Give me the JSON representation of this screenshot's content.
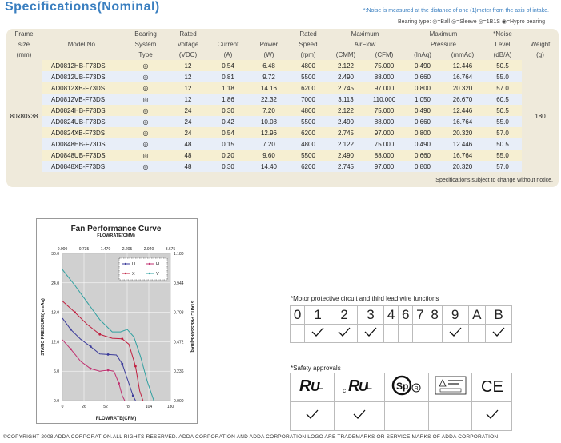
{
  "title": "Specifications(Nominal)",
  "note": "*:Noise is measured at the distance of one (1)meter from the axis of intake.",
  "bearing_type": "Bearing type: ◎=Ball ◎=Sleeve ◎=1B1S ◉=Hypro bearing",
  "headers": {
    "frame": [
      "Frame",
      "size",
      "(mm)"
    ],
    "model": "Model No.",
    "bearing": [
      "Bearing",
      "System",
      "Type"
    ],
    "voltage": [
      "Rated",
      "Voltage",
      "(VDC)"
    ],
    "current": [
      "Current",
      "(A)"
    ],
    "power": [
      "Power",
      "(W)"
    ],
    "speed": [
      "Rated",
      "Speed",
      "(rpm)"
    ],
    "airflow": [
      "Maximum",
      "AirFlow"
    ],
    "airflow_units": [
      "(CMM)",
      "(CFM)"
    ],
    "pressure": [
      "Maximum",
      "Pressure"
    ],
    "pressure_units": [
      "(InAq)",
      "(mmAq)"
    ],
    "noise": [
      "*Noise",
      "Level",
      "(dB/A)"
    ],
    "weight": [
      "Weight",
      "(g)"
    ]
  },
  "frame_size": "80x80x38",
  "weight": "180",
  "rows": [
    {
      "model": "AD0812HB-F73DS",
      "bearing": "◎",
      "voltage": "12",
      "current": "0.54",
      "power": "6.48",
      "speed": "4800",
      "cmm": "2.122",
      "cfm": "75.000",
      "inaq": "0.490",
      "mmaq": "12.446",
      "noise": "50.5"
    },
    {
      "model": "AD0812UB-F73DS",
      "bearing": "◎",
      "voltage": "12",
      "current": "0.81",
      "power": "9.72",
      "speed": "5500",
      "cmm": "2.490",
      "cfm": "88.000",
      "inaq": "0.660",
      "mmaq": "16.764",
      "noise": "55.0"
    },
    {
      "model": "AD0812XB-F73DS",
      "bearing": "◎",
      "voltage": "12",
      "current": "1.18",
      "power": "14.16",
      "speed": "6200",
      "cmm": "2.745",
      "cfm": "97.000",
      "inaq": "0.800",
      "mmaq": "20.320",
      "noise": "57.0"
    },
    {
      "model": "AD0812VB-F73DS",
      "bearing": "◎",
      "voltage": "12",
      "current": "1.86",
      "power": "22.32",
      "speed": "7000",
      "cmm": "3.113",
      "cfm": "110.000",
      "inaq": "1.050",
      "mmaq": "26.670",
      "noise": "60.5"
    },
    {
      "model": "AD0824HB-F73DS",
      "bearing": "◎",
      "voltage": "24",
      "current": "0.30",
      "power": "7.20",
      "speed": "4800",
      "cmm": "2.122",
      "cfm": "75.000",
      "inaq": "0.490",
      "mmaq": "12.446",
      "noise": "50.5"
    },
    {
      "model": "AD0824UB-F73DS",
      "bearing": "◎",
      "voltage": "24",
      "current": "0.42",
      "power": "10.08",
      "speed": "5500",
      "cmm": "2.490",
      "cfm": "88.000",
      "inaq": "0.660",
      "mmaq": "16.764",
      "noise": "55.0"
    },
    {
      "model": "AD0824XB-F73DS",
      "bearing": "◎",
      "voltage": "24",
      "current": "0.54",
      "power": "12.96",
      "speed": "6200",
      "cmm": "2.745",
      "cfm": "97.000",
      "inaq": "0.800",
      "mmaq": "20.320",
      "noise": "57.0"
    },
    {
      "model": "AD0848HB-F73DS",
      "bearing": "◎",
      "voltage": "48",
      "current": "0.15",
      "power": "7.20",
      "speed": "4800",
      "cmm": "2.122",
      "cfm": "75.000",
      "inaq": "0.490",
      "mmaq": "12.446",
      "noise": "50.5"
    },
    {
      "model": "AD0848UB-F73DS",
      "bearing": "◎",
      "voltage": "48",
      "current": "0.20",
      "power": "9.60",
      "speed": "5500",
      "cmm": "2.490",
      "cfm": "88.000",
      "inaq": "0.660",
      "mmaq": "16.764",
      "noise": "55.0"
    },
    {
      "model": "AD0848XB-F73DS",
      "bearing": "◎",
      "voltage": "48",
      "current": "0.30",
      "power": "14.40",
      "speed": "6200",
      "cmm": "2.745",
      "cfm": "97.000",
      "inaq": "0.800",
      "mmaq": "20.320",
      "noise": "57.0"
    }
  ],
  "subject_note": "Specifications subject to change without notice.",
  "chart_data": {
    "type": "line",
    "title": "Fan Performance Curve",
    "top_axis_label": "FLOWRATE(CMM)",
    "xlabel": "FLOWRATE(CFM)",
    "ylabel": "STATIC PRESSURE(mmAq)",
    "y2label": "STATIC PRESSURE(InAq)",
    "xticks": [
      "0",
      "26",
      "52",
      "78",
      "104",
      "130"
    ],
    "top_ticks": [
      "0.000",
      "0.735",
      "1.470",
      "2.205",
      "2.940",
      "3.675"
    ],
    "yticks": [
      "0.0",
      "6.0",
      "12.0",
      "18.0",
      "24.0",
      "30.0"
    ],
    "y2ticks": [
      "0.000",
      "0.236",
      "0.472",
      "0.708",
      "0.944",
      "1.180"
    ],
    "xlim": [
      0,
      130
    ],
    "ylim": [
      0,
      30
    ],
    "grid": true,
    "legend_position": "top-right",
    "series": [
      {
        "name": "U",
        "color": "#3a3a9a",
        "marker": "circle",
        "x": [
          0,
          10,
          22,
          34,
          45,
          55,
          65,
          72,
          78,
          85,
          88
        ],
        "y": [
          16.8,
          14.5,
          12.5,
          11.0,
          9.5,
          9.4,
          9.3,
          7.5,
          4.5,
          1.0,
          0.0
        ]
      },
      {
        "name": "H",
        "color": "#c03070",
        "marker": "square",
        "x": [
          0,
          10,
          22,
          34,
          45,
          55,
          62,
          68,
          72,
          75
        ],
        "y": [
          12.4,
          10.5,
          8.0,
          6.5,
          6.0,
          6.2,
          6.0,
          3.5,
          1.0,
          0.0
        ]
      },
      {
        "name": "X",
        "color": "#c02040",
        "marker": "diamond",
        "x": [
          0,
          15,
          30,
          45,
          60,
          72,
          80,
          88,
          93,
          97
        ],
        "y": [
          20.3,
          18.0,
          15.5,
          13.5,
          12.7,
          12.6,
          11.5,
          7.0,
          2.0,
          0.0
        ]
      },
      {
        "name": "V",
        "color": "#30a0a0",
        "marker": "none",
        "x": [
          0,
          15,
          30,
          45,
          60,
          70,
          78,
          86,
          94,
          102,
          110
        ],
        "y": [
          26.7,
          23.5,
          20.0,
          16.5,
          14.0,
          14.0,
          14.5,
          13.0,
          9.0,
          4.0,
          0.0
        ]
      }
    ]
  },
  "motor_label": "*Motor protective circuit and third lead wire functions",
  "motor_columns": [
    "0",
    "1",
    "2",
    "3",
    "4",
    "6",
    "7",
    "8",
    "9",
    "A",
    "B"
  ],
  "motor_checks": [
    false,
    true,
    true,
    true,
    false,
    false,
    false,
    false,
    true,
    false,
    true
  ],
  "safety_label": "*Safety approvals",
  "safety_checks": [
    true,
    true,
    false,
    false,
    true
  ],
  "footer": "©COPYRIGHT 2008 ADDA CORPORATION.ALL RIGHTS RESERVED. ADDA CORPORATION AND ADDA CORPORATION LOGO ARE TRADEMARKS OR SERVICE MARKS OF ADDA CORPORATION."
}
